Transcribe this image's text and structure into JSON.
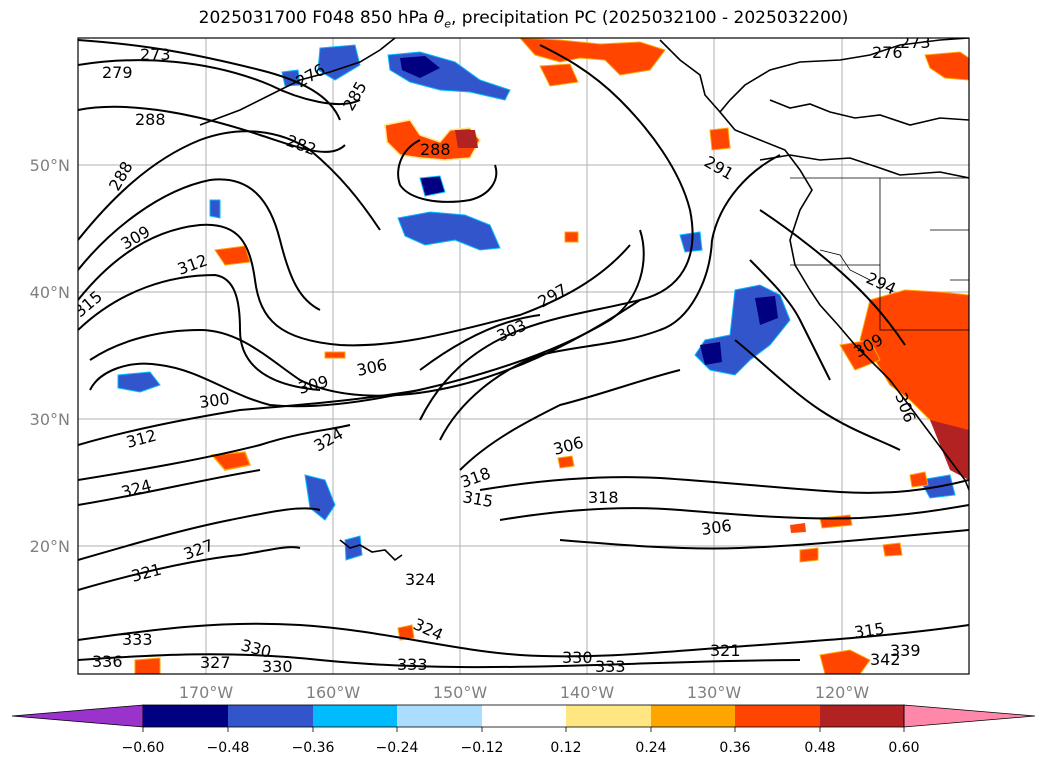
{
  "title_main": "2025031700 F048 850 hPa ",
  "title_theta": "θ",
  "title_sub": "e",
  "title_rest": ", precipitation PC (2025032100 - 2025032200)",
  "lat_labels": [
    "50°N",
    "40°N",
    "30°N",
    "20°N"
  ],
  "lon_labels": [
    "170°W",
    "160°W",
    "150°W",
    "140°W",
    "130°W",
    "120°W"
  ],
  "contour_labels": [
    "273",
    "279",
    "288",
    "288",
    "276",
    "285",
    "282",
    "288",
    "291",
    "276",
    "273",
    "309",
    "312",
    "315",
    "294",
    "297",
    "303",
    "306",
    "309",
    "300",
    "312",
    "324",
    "306",
    "324",
    "318",
    "315",
    "318",
    "306",
    "327",
    "321",
    "324",
    "324",
    "333",
    "336",
    "330",
    "330",
    "327",
    "333",
    "330",
    "333",
    "321",
    "315",
    "339",
    "342",
    "309",
    "306"
  ],
  "colorbar": {
    "ticks": [
      "−0.60",
      "−0.48",
      "−0.36",
      "−0.24",
      "−0.12",
      "0.12",
      "0.24",
      "0.36",
      "0.48",
      "0.60"
    ],
    "colors": [
      "#9933cc",
      "#000080",
      "#3355cc",
      "#00bbff",
      "#aaddff",
      "#ffffff",
      "#ffe680",
      "#ffa500",
      "#ff4500",
      "#b22222",
      "#ff88aa",
      "#ff88aa"
    ],
    "extend_low_color": "#9933cc",
    "extend_high_color": "#ff88aa"
  }
}
